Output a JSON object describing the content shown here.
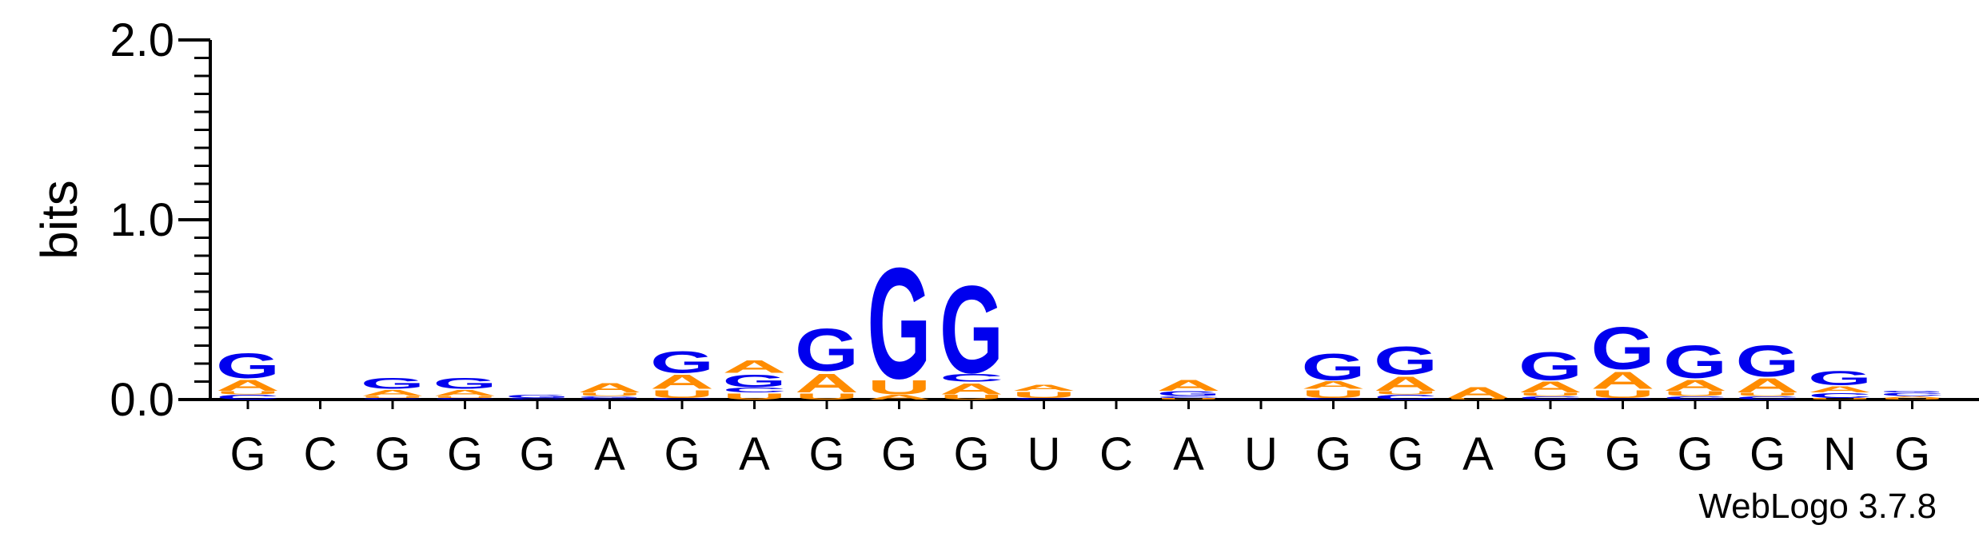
{
  "chart_data": {
    "type": "sequence-logo",
    "ylabel": "bits",
    "ylim": [
      0,
      2.0
    ],
    "yticks": [
      "0.0",
      "1.0",
      "2.0"
    ],
    "credit": "WebLogo 3.7.8",
    "colors": {
      "G": "#0000ee",
      "A": "#ff8c00",
      "U": "#ff8c00",
      "C": "#0000ee"
    },
    "positions": [
      {
        "label": "G",
        "stack": [
          [
            "C",
            0.03
          ],
          [
            "U",
            0.02
          ],
          [
            "A",
            0.07
          ],
          [
            "G",
            0.16
          ]
        ]
      },
      {
        "label": "C",
        "stack": []
      },
      {
        "label": "G",
        "stack": [
          [
            "C",
            0.01
          ],
          [
            "U",
            0.01
          ],
          [
            "A",
            0.04
          ],
          [
            "G",
            0.07
          ]
        ]
      },
      {
        "label": "G",
        "stack": [
          [
            "C",
            0.01
          ],
          [
            "U",
            0.01
          ],
          [
            "A",
            0.04
          ],
          [
            "G",
            0.07
          ]
        ]
      },
      {
        "label": "G",
        "stack": [
          [
            "C",
            0.01
          ],
          [
            "G",
            0.02
          ]
        ]
      },
      {
        "label": "A",
        "stack": [
          [
            "C",
            0.01
          ],
          [
            "G",
            0.01
          ],
          [
            "U",
            0.02
          ],
          [
            "A",
            0.06
          ]
        ]
      },
      {
        "label": "G",
        "stack": [
          [
            "C",
            0.01
          ],
          [
            "U",
            0.05
          ],
          [
            "A",
            0.09
          ],
          [
            "G",
            0.14
          ]
        ]
      },
      {
        "label": "A",
        "stack": [
          [
            "U",
            0.04
          ],
          [
            "C",
            0.03
          ],
          [
            "G",
            0.08
          ],
          [
            "A",
            0.08
          ]
        ]
      },
      {
        "label": "G",
        "stack": [
          [
            "U",
            0.04
          ],
          [
            "A",
            0.12
          ],
          [
            "G",
            0.27
          ]
        ]
      },
      {
        "label": "G",
        "stack": [
          [
            "A",
            0.03
          ],
          [
            "U",
            0.09
          ],
          [
            "G",
            0.71
          ]
        ]
      },
      {
        "label": "G",
        "stack": [
          [
            "U",
            0.03
          ],
          [
            "A",
            0.07
          ],
          [
            "C",
            0.05
          ],
          [
            "G",
            0.56
          ]
        ]
      },
      {
        "label": "U",
        "stack": [
          [
            "C",
            0.01
          ],
          [
            "U",
            0.04
          ],
          [
            "A",
            0.04
          ]
        ]
      },
      {
        "label": "C",
        "stack": []
      },
      {
        "label": "A",
        "stack": [
          [
            "U",
            0.01
          ],
          [
            "C",
            0.01
          ],
          [
            "G",
            0.03
          ],
          [
            "A",
            0.07
          ]
        ]
      },
      {
        "label": "U",
        "stack": []
      },
      {
        "label": "G",
        "stack": [
          [
            "C",
            0.01
          ],
          [
            "U",
            0.05
          ],
          [
            "A",
            0.05
          ],
          [
            "G",
            0.17
          ]
        ]
      },
      {
        "label": "G",
        "stack": [
          [
            "C",
            0.03
          ],
          [
            "U",
            0.02
          ],
          [
            "A",
            0.09
          ],
          [
            "G",
            0.18
          ]
        ]
      },
      {
        "label": "A",
        "stack": [
          [
            "U",
            0.01
          ],
          [
            "A",
            0.07
          ]
        ]
      },
      {
        "label": "G",
        "stack": [
          [
            "C",
            0.02
          ],
          [
            "U",
            0.02
          ],
          [
            "A",
            0.07
          ],
          [
            "G",
            0.18
          ]
        ]
      },
      {
        "label": "G",
        "stack": [
          [
            "C",
            0.01
          ],
          [
            "U",
            0.05
          ],
          [
            "A",
            0.11
          ],
          [
            "G",
            0.27
          ]
        ]
      },
      {
        "label": "G",
        "stack": [
          [
            "C",
            0.02
          ],
          [
            "U",
            0.03
          ],
          [
            "A",
            0.07
          ],
          [
            "G",
            0.21
          ]
        ]
      },
      {
        "label": "G",
        "stack": [
          [
            "C",
            0.02
          ],
          [
            "U",
            0.02
          ],
          [
            "A",
            0.09
          ],
          [
            "G",
            0.2
          ]
        ]
      },
      {
        "label": "N",
        "stack": [
          [
            "U",
            0.01
          ],
          [
            "C",
            0.03
          ],
          [
            "A",
            0.04
          ],
          [
            "G",
            0.09
          ]
        ]
      },
      {
        "label": "G",
        "stack": [
          [
            "U",
            0.01
          ],
          [
            "A",
            0.01
          ],
          [
            "C",
            0.02
          ],
          [
            "G",
            0.01
          ]
        ]
      }
    ]
  }
}
